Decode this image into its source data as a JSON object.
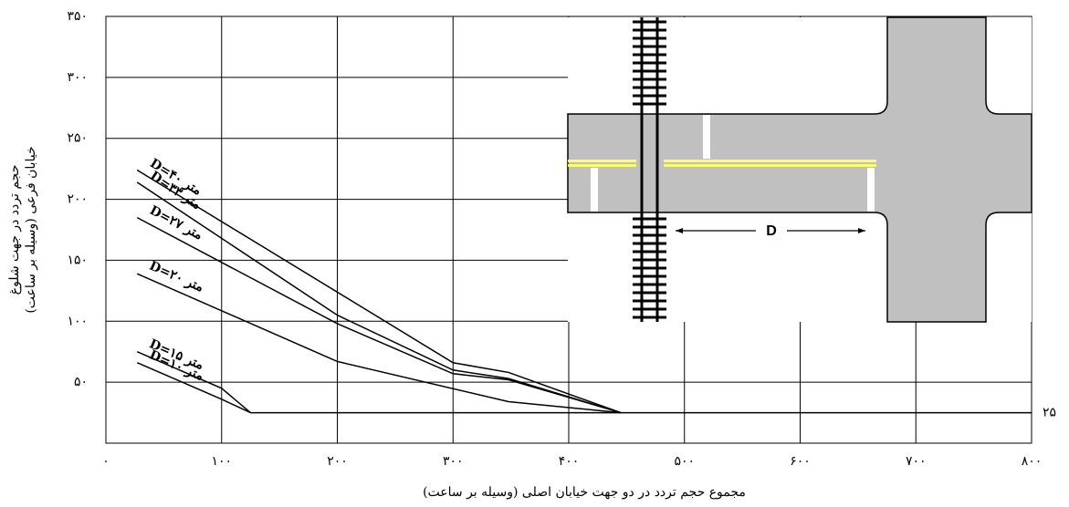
{
  "chart_data": {
    "type": "line",
    "xlabel": "مجموع حجم تردد در دو جهت خیابان اصلی (وسیله بر ساعت)",
    "ylabel": [
      "حجم تردد در جهت شلوغ",
      "خیابان فرعی (وسیله بر ساعت)"
    ],
    "xlim": [
      0,
      800
    ],
    "ylim": [
      0,
      350
    ],
    "xticks": [
      {
        "value": 0,
        "label": "۰"
      },
      {
        "value": 100,
        "label": "۱۰۰"
      },
      {
        "value": 200,
        "label": "۲۰۰"
      },
      {
        "value": 300,
        "label": "۳۰۰"
      },
      {
        "value": 400,
        "label": "۴۰۰"
      },
      {
        "value": 500,
        "label": "۵۰۰"
      },
      {
        "value": 600,
        "label": "۶۰۰"
      },
      {
        "value": 700,
        "label": "۷۰۰"
      },
      {
        "value": 800,
        "label": "۸۰۰"
      }
    ],
    "yticks": [
      {
        "value": 50,
        "label": "۵۰"
      },
      {
        "value": 100,
        "label": "۱۰۰"
      },
      {
        "value": 150,
        "label": "۱۵۰"
      },
      {
        "value": 200,
        "label": "۲۰۰"
      },
      {
        "value": 250,
        "label": "۲۵۰"
      },
      {
        "value": 300,
        "label": "۳۰۰"
      },
      {
        "value": 350,
        "label": "۳۵۰"
      }
    ],
    "grid": true,
    "inset_label": "D",
    "series": [
      {
        "name": "D=۴۰ متر",
        "color": "#000000",
        "x": [
          27,
          300,
          348,
          445
        ],
        "values": [
          224,
          66,
          58,
          25
        ]
      },
      {
        "name": "D=۳۳ متر",
        "color": "#000000",
        "x": [
          27,
          200,
          300,
          348,
          445
        ],
        "values": [
          214,
          105,
          60,
          53,
          25
        ]
      },
      {
        "name": "D=۲۷ متر",
        "color": "#000000",
        "x": [
          27,
          200,
          300,
          348,
          445
        ],
        "values": [
          185,
          98,
          57,
          52,
          25
        ]
      },
      {
        "name": "D=۲۰ متر",
        "color": "#000000",
        "x": [
          27,
          200,
          348,
          445
        ],
        "values": [
          139,
          67,
          34,
          25
        ]
      },
      {
        "name": "D=۱۵ متر",
        "color": "#000000",
        "x": [
          27,
          100,
          125
        ],
        "values": [
          75,
          45,
          25
        ]
      },
      {
        "name": "D=۱۰ متر",
        "color": "#000000",
        "x": [
          27,
          100,
          125
        ],
        "values": [
          66,
          36,
          25
        ]
      },
      {
        "name": "۲۵",
        "color": "#000000",
        "x": [
          125,
          800
        ],
        "values": [
          25,
          25
        ]
      }
    ]
  }
}
